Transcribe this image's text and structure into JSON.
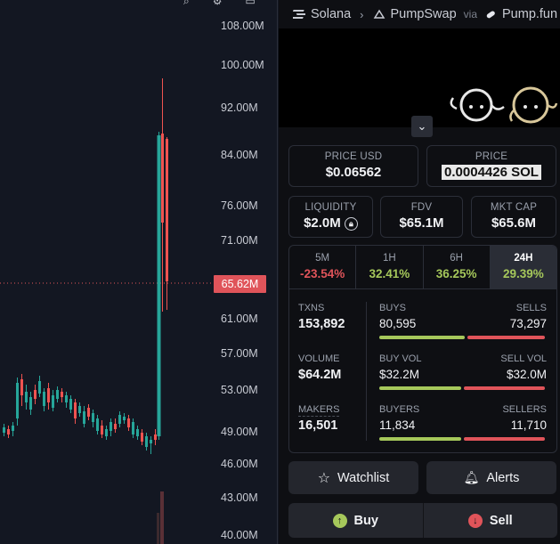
{
  "chart": {
    "price_labels": [
      "108.00M",
      "100.00M",
      "92.00M",
      "84.00M",
      "76.00M",
      "71.00M",
      "61.00M",
      "57.00M",
      "53.00M",
      "49.00M",
      "46.00M",
      "43.00M",
      "40.00M"
    ],
    "current_price_label": "65.62M",
    "colors": {
      "up": "#26a69a",
      "down": "#ef5350",
      "price_tag": "#e0545a"
    }
  },
  "breadcrumb": {
    "chain": "Solana",
    "dex": "PumpSwap",
    "via": "via",
    "launchpad": "Pump.fun"
  },
  "price": {
    "usd_label": "PRICE USD",
    "usd_value": "$0.06562",
    "native_label": "PRICE",
    "native_value": "0.0004426 SOL"
  },
  "metrics": {
    "liquidity_label": "LIQUIDITY",
    "liquidity_value": "$2.0M",
    "fdv_label": "FDV",
    "fdv_value": "$65.1M",
    "mktcap_label": "MKT CAP",
    "mktcap_value": "$65.6M"
  },
  "timeframes": [
    {
      "label": "5M",
      "value": "-23.54%",
      "color": "#e0545a"
    },
    {
      "label": "1H",
      "value": "32.41%",
      "color": "#a6c85b"
    },
    {
      "label": "6H",
      "value": "36.25%",
      "color": "#a6c85b"
    },
    {
      "label": "24H",
      "value": "29.39%",
      "color": "#a6c85b",
      "active": true
    }
  ],
  "txns": {
    "txns_label": "TXNS",
    "txns_value": "153,892",
    "buys_label": "BUYS",
    "buys_value": "80,595",
    "sells_label": "SELLS",
    "sells_value": "73,297",
    "volume_label": "VOLUME",
    "volume_value": "$64.2M",
    "buyvol_label": "BUY VOL",
    "buyvol_value": "$32.2M",
    "sellvol_label": "SELL VOL",
    "sellvol_value": "$32.0M",
    "makers_label": "MAKERS",
    "makers_value": "16,501",
    "buyers_label": "BUYERS",
    "buyers_value": "11,834",
    "sellers_label": "SELLERS",
    "sellers_value": "11,710"
  },
  "actions": {
    "watchlist": "Watchlist",
    "alerts": "Alerts",
    "buy": "Buy",
    "sell": "Sell"
  }
}
